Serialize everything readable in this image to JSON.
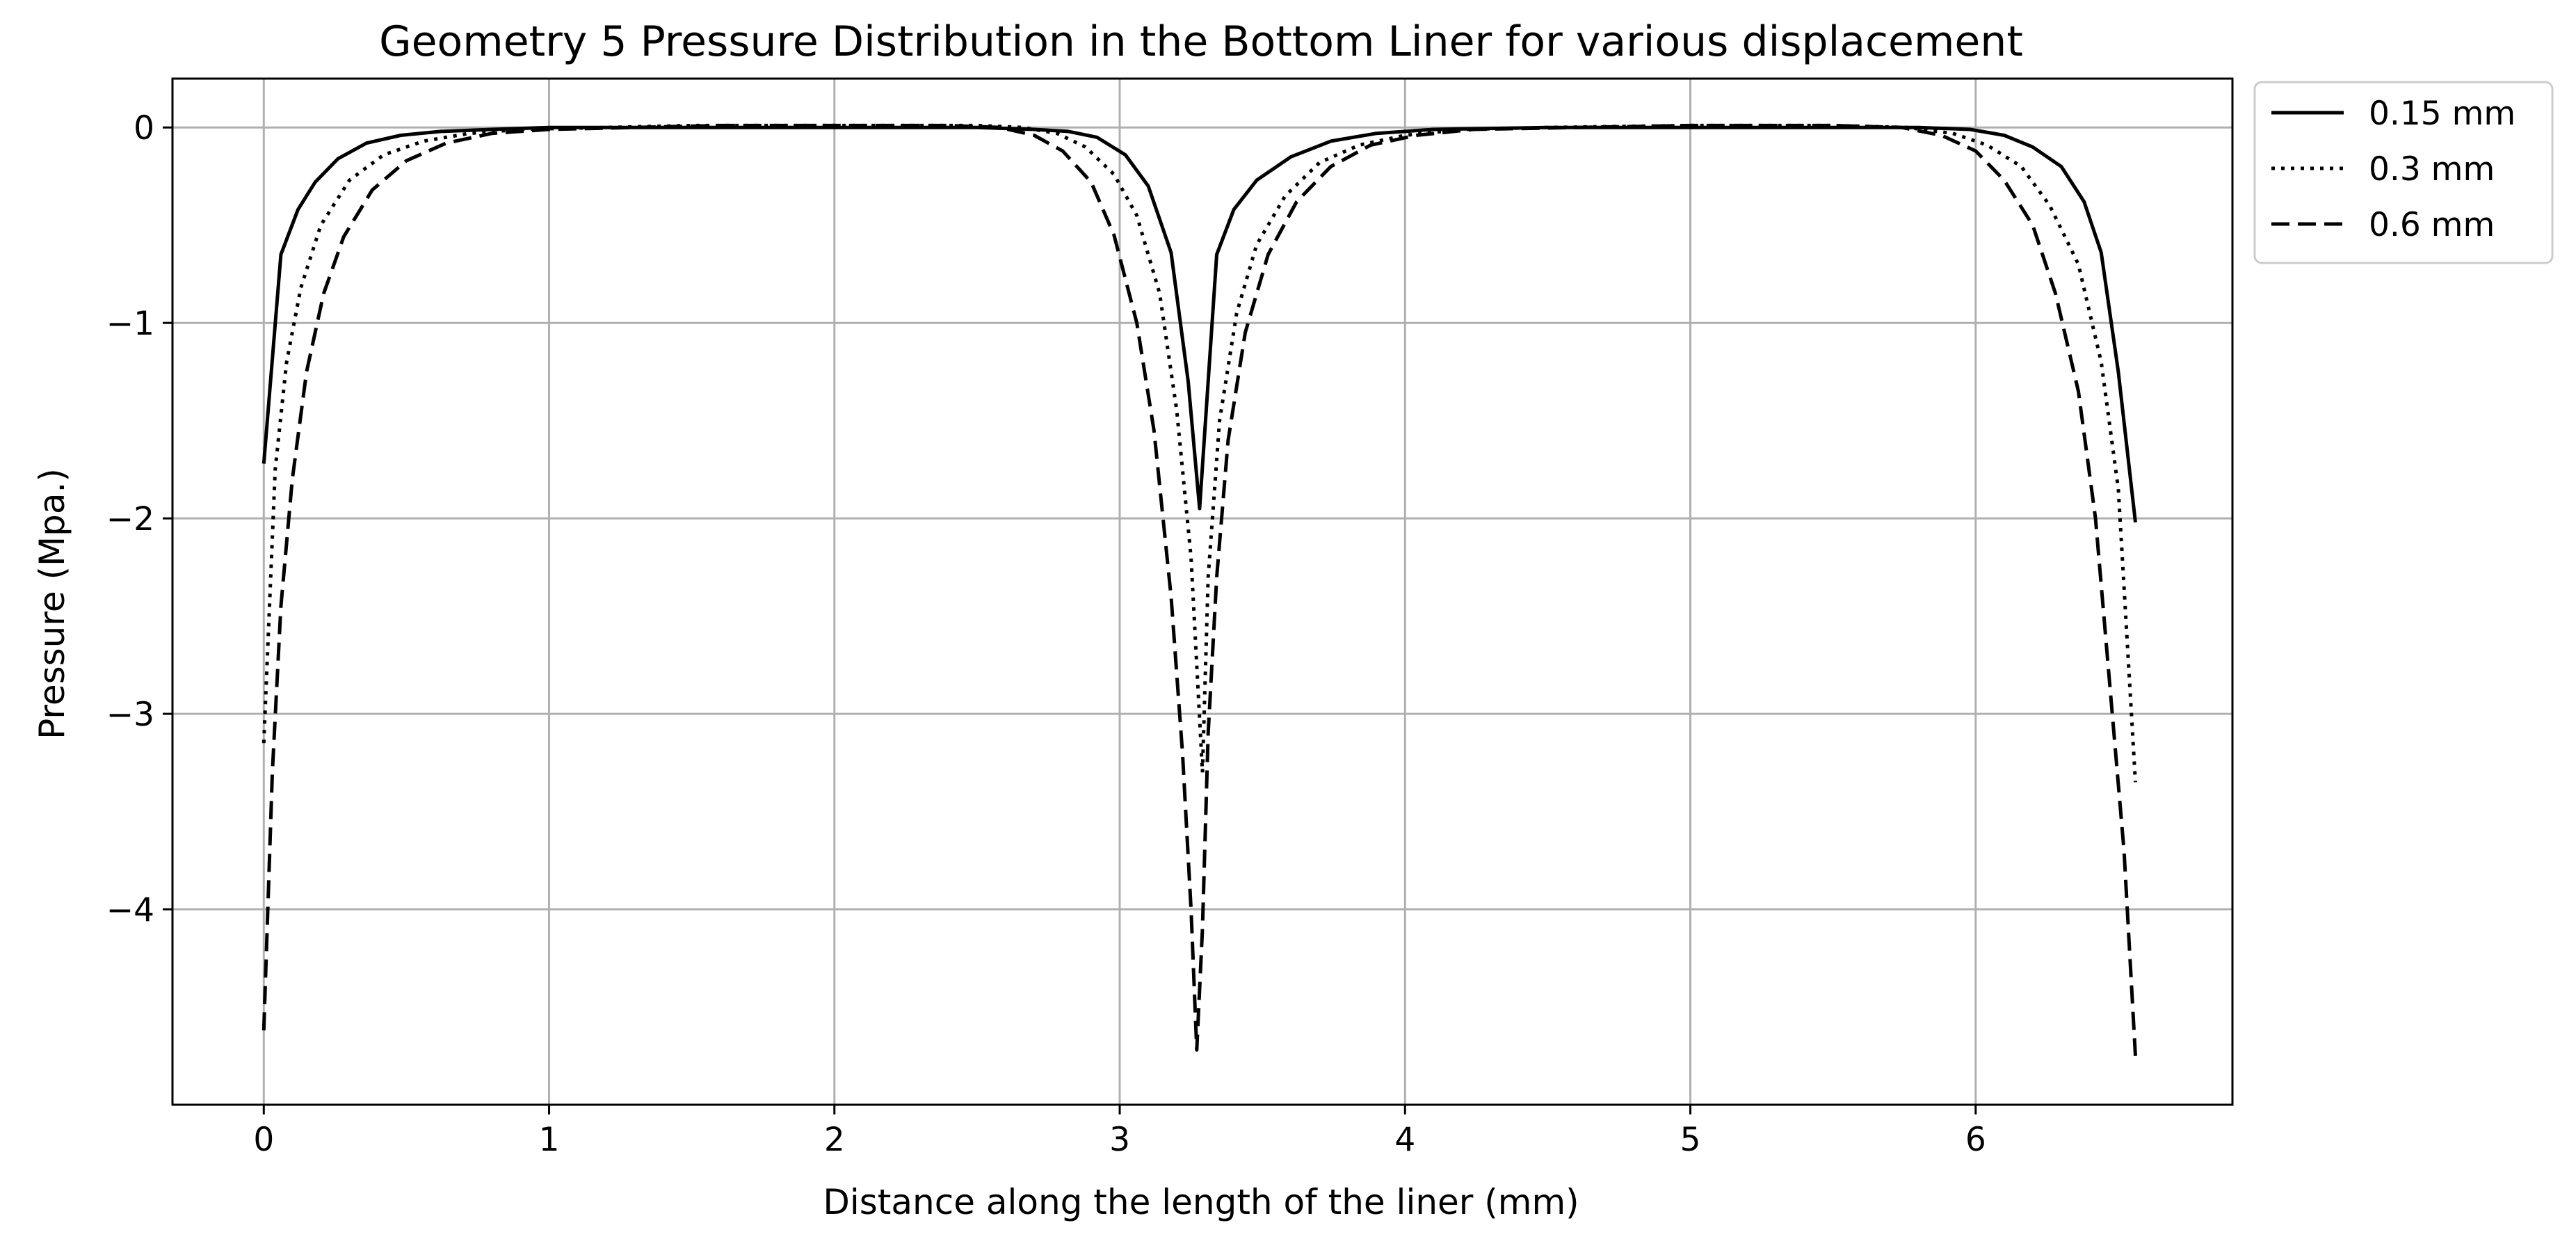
{
  "chart_data": {
    "type": "line",
    "title": "Geometry 5 Pressure Distribution in the Bottom Liner for various displacement",
    "xlabel": "Distance along the length of the liner (mm)",
    "ylabel": "Pressure (Mpa.)",
    "xlim": [
      -0.32,
      6.9
    ],
    "ylim": [
      -5.0,
      0.25
    ],
    "xticks": [
      0,
      1,
      2,
      3,
      4,
      5,
      6
    ],
    "xtick_labels": [
      "0",
      "1",
      "2",
      "3",
      "4",
      "5",
      "6"
    ],
    "yticks": [
      0,
      -1,
      -2,
      -3,
      -4
    ],
    "ytick_labels": [
      "0",
      "−1",
      "−2",
      "−3",
      "−4"
    ],
    "grid": true,
    "legend_position": "outside-top-right",
    "series": [
      {
        "name": "0.15 mm",
        "style": "solid",
        "color": "#000000",
        "x": [
          0,
          0.06,
          0.12,
          0.18,
          0.26,
          0.36,
          0.48,
          0.62,
          0.8,
          1.0,
          1.5,
          2.0,
          2.5,
          2.7,
          2.82,
          2.92,
          3.02,
          3.1,
          3.18,
          3.24,
          3.28,
          3.34,
          3.4,
          3.48,
          3.6,
          3.74,
          3.9,
          4.1,
          4.5,
          5.0,
          5.5,
          5.8,
          5.98,
          6.1,
          6.2,
          6.3,
          6.38,
          6.44,
          6.5,
          6.56
        ],
        "y": [
          -1.72,
          -0.65,
          -0.42,
          -0.28,
          -0.16,
          -0.08,
          -0.04,
          -0.02,
          -0.01,
          0.0,
          0.0,
          0.0,
          0.0,
          -0.01,
          -0.02,
          -0.05,
          -0.14,
          -0.3,
          -0.64,
          -1.3,
          -1.95,
          -0.65,
          -0.42,
          -0.27,
          -0.15,
          -0.07,
          -0.03,
          -0.01,
          0.0,
          0.0,
          0.0,
          0.0,
          -0.01,
          -0.04,
          -0.1,
          -0.2,
          -0.38,
          -0.64,
          -1.25,
          -2.02
        ]
      },
      {
        "name": "0.3 mm",
        "style": "dotted",
        "color": "#000000",
        "x": [
          0,
          0.04,
          0.08,
          0.13,
          0.2,
          0.3,
          0.42,
          0.56,
          0.72,
          0.9,
          1.2,
          1.5,
          2.0,
          2.5,
          2.66,
          2.78,
          2.88,
          2.98,
          3.06,
          3.14,
          3.2,
          3.25,
          3.29,
          3.31,
          3.35,
          3.41,
          3.48,
          3.58,
          3.7,
          3.84,
          4.0,
          4.2,
          4.5,
          5.0,
          5.5,
          5.76,
          5.92,
          6.04,
          6.16,
          6.26,
          6.36,
          6.44,
          6.5,
          6.56
        ],
        "y": [
          -3.15,
          -1.75,
          -1.2,
          -0.82,
          -0.5,
          -0.27,
          -0.14,
          -0.07,
          -0.03,
          -0.01,
          0.0,
          0.01,
          0.01,
          0.01,
          0.0,
          -0.03,
          -0.1,
          -0.24,
          -0.45,
          -0.85,
          -1.45,
          -2.2,
          -3.3,
          -2.3,
          -1.5,
          -0.95,
          -0.6,
          -0.35,
          -0.18,
          -0.09,
          -0.04,
          -0.01,
          0.0,
          0.01,
          0.01,
          0.0,
          -0.03,
          -0.09,
          -0.2,
          -0.4,
          -0.7,
          -1.2,
          -1.85,
          -3.35
        ]
      },
      {
        "name": "0.6 mm",
        "style": "dashed",
        "color": "#000000",
        "x": [
          0,
          0.03,
          0.06,
          0.1,
          0.15,
          0.21,
          0.28,
          0.38,
          0.5,
          0.64,
          0.8,
          1.0,
          1.3,
          1.6,
          2.0,
          2.4,
          2.58,
          2.7,
          2.8,
          2.9,
          2.98,
          3.06,
          3.12,
          3.18,
          3.22,
          3.25,
          3.27,
          3.29,
          3.31,
          3.34,
          3.38,
          3.44,
          3.52,
          3.62,
          3.74,
          3.88,
          4.04,
          4.24,
          4.6,
          5.0,
          5.5,
          5.74,
          5.88,
          6.0,
          6.1,
          6.2,
          6.28,
          6.36,
          6.42,
          6.47,
          6.52,
          6.56
        ],
        "y": [
          -4.62,
          -3.3,
          -2.45,
          -1.8,
          -1.25,
          -0.85,
          -0.56,
          -0.32,
          -0.17,
          -0.08,
          -0.03,
          -0.01,
          0.0,
          0.01,
          0.01,
          0.01,
          0.0,
          -0.04,
          -0.12,
          -0.28,
          -0.55,
          -1.0,
          -1.55,
          -2.4,
          -3.2,
          -4.0,
          -4.72,
          -4.1,
          -3.1,
          -2.3,
          -1.6,
          -1.05,
          -0.65,
          -0.38,
          -0.2,
          -0.09,
          -0.04,
          -0.01,
          0.0,
          0.01,
          0.01,
          0.0,
          -0.04,
          -0.12,
          -0.27,
          -0.5,
          -0.85,
          -1.35,
          -2.0,
          -2.85,
          -3.7,
          -4.75
        ]
      }
    ]
  }
}
